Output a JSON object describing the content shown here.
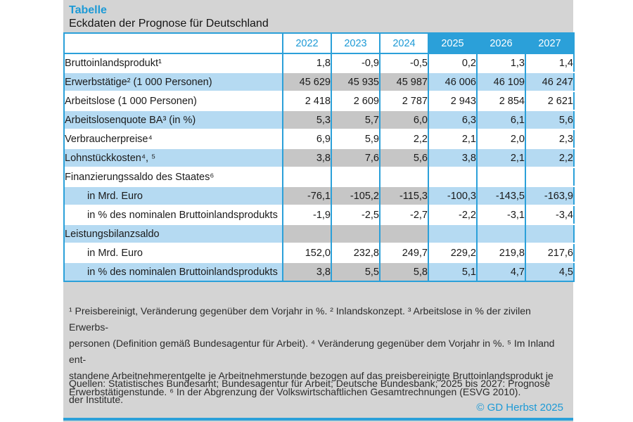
{
  "title": "Tabelle",
  "subtitle": "Eckdaten der Prognose für Deutschland",
  "chart_data": {
    "type": "table",
    "title": "Eckdaten der Prognose für Deutschland",
    "columns": [
      {
        "label": "2022",
        "period": "history"
      },
      {
        "label": "2023",
        "period": "history"
      },
      {
        "label": "2024",
        "period": "history"
      },
      {
        "label": "2025",
        "period": "forecast"
      },
      {
        "label": "2026",
        "period": "forecast"
      },
      {
        "label": "2027",
        "period": "forecast"
      }
    ],
    "rows": [
      {
        "label": "Bruttoinlandsprodukt¹",
        "indent": false,
        "shaded": false,
        "values": [
          "1,8",
          "-0,9",
          "-0,5",
          "0,2",
          "1,3",
          "1,4"
        ]
      },
      {
        "label": "Erwerbstätige² (1 000 Personen)",
        "indent": false,
        "shaded": true,
        "values": [
          "45 629",
          "45 935",
          "45 987",
          "46 006",
          "46 109",
          "46 247"
        ]
      },
      {
        "label": "Arbeitslose (1 000 Personen)",
        "indent": false,
        "shaded": false,
        "values": [
          "2 418",
          "2 609",
          "2 787",
          "2 943",
          "2 854",
          "2 621"
        ]
      },
      {
        "label": "Arbeitslosenquote BA³ (in %)",
        "indent": false,
        "shaded": true,
        "values": [
          "5,3",
          "5,7",
          "6,0",
          "6,3",
          "6,1",
          "5,6"
        ]
      },
      {
        "label": "Verbraucherpreise⁴",
        "indent": false,
        "shaded": false,
        "values": [
          "6,9",
          "5,9",
          "2,2",
          "2,1",
          "2,0",
          "2,3"
        ]
      },
      {
        "label": "Lohnstückkosten⁴, ⁵",
        "indent": false,
        "shaded": true,
        "values": [
          "3,8",
          "7,6",
          "5,6",
          "3,8",
          "2,1",
          "2,2"
        ]
      },
      {
        "label": "Finanzierungssaldo des Staates⁶",
        "indent": false,
        "shaded": false,
        "values": [
          "",
          "",
          "",
          "",
          "",
          ""
        ]
      },
      {
        "label": "in Mrd. Euro",
        "indent": true,
        "shaded": true,
        "values": [
          "-76,1",
          "-105,2",
          "-115,3",
          "-100,3",
          "-143,5",
          "-163,9"
        ]
      },
      {
        "label": "in % des nominalen Bruttoinlandsprodukts",
        "indent": true,
        "shaded": false,
        "values": [
          "-1,9",
          "-2,5",
          "-2,7",
          "-2,2",
          "-3,1",
          "-3,4"
        ]
      },
      {
        "label": "Leistungsbilanzsaldo",
        "indent": false,
        "shaded": true,
        "values": [
          "",
          "",
          "",
          "",
          "",
          ""
        ]
      },
      {
        "label": "in Mrd. Euro",
        "indent": true,
        "shaded": false,
        "values": [
          "152,0",
          "232,8",
          "249,7",
          "229,2",
          "219,8",
          "217,6"
        ]
      },
      {
        "label": "in % des nominalen Bruttoinlandsprodukts",
        "indent": true,
        "shaded": true,
        "values": [
          "3,8",
          "5,5",
          "5,8",
          "5,1",
          "4,7",
          "4,5"
        ]
      }
    ]
  },
  "footnotes": {
    "lines": [
      "¹ Preisbereinigt, Veränderung gegenüber dem Vorjahr in %. ² Inlandskonzept. ³ Arbeitslose in % der zivilen Erwerbs-",
      "personen (Definition gemäß Bundesagentur für Arbeit). ⁴ Veränderung gegenüber dem Vorjahr in %. ⁵ Im Inland ent-",
      "standene Arbeitnehmerentgelte je Arbeitnehmerstunde bezogen auf das preisbereinigte Bruttoinlandsprodukt je",
      "Erwerbstätigenstunde. ⁶ In der Abgrenzung der Volkswirtschaftlichen Gesamtrechnungen (ESVG 2010)."
    ]
  },
  "sources": {
    "lines": [
      "Quellen: Statistisches Bundesamt; Bundesagentur für Arbeit; Deutsche Bundesbank; 2025 bis 2027: Prognose",
      "der Institute."
    ]
  },
  "copyright_label": "© GD Herbst 2025",
  "colors": {
    "accent_blue": "#2ba0d9",
    "title_blue": "#1d9ad6",
    "light_blue_cell": "#b5daf2",
    "gray_cell": "#c6c6c6",
    "page_gray": "#d4d4d4",
    "text": "#1a1a1a"
  }
}
